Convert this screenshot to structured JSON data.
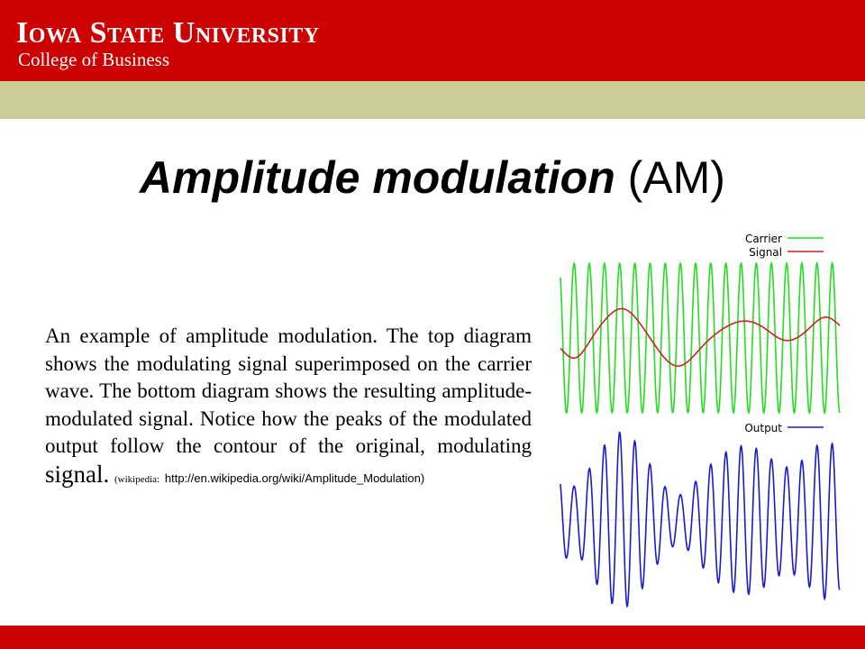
{
  "header": {
    "university": "Iowa State University",
    "college": "College of Business"
  },
  "slide": {
    "title_emphasis": "Amplitude modulation",
    "title_rest": "(AM)",
    "body_main": "An example of amplitude modulation. The top diagram shows the modulating signal superimposed on the carrier wave. The bottom diagram shows the resulting amplitude-modulated signal. Notice how the peaks of the modulated output follow the contour of the original, modulating",
    "body_last_word": "signal.",
    "cite_prefix": "(wikipedia:",
    "cite_url": "http://en.wikipedia.org/wiki/Amplitude_Modulation)"
  },
  "figure": {
    "legend_carrier": "Carrier",
    "legend_signal": "Signal",
    "legend_output": "Output",
    "colors": {
      "carrier": "#22dd22",
      "signal": "#cc2222",
      "output": "#1a1acc",
      "header_red": "#cc0000",
      "tan_band": "#cccc99"
    }
  }
}
